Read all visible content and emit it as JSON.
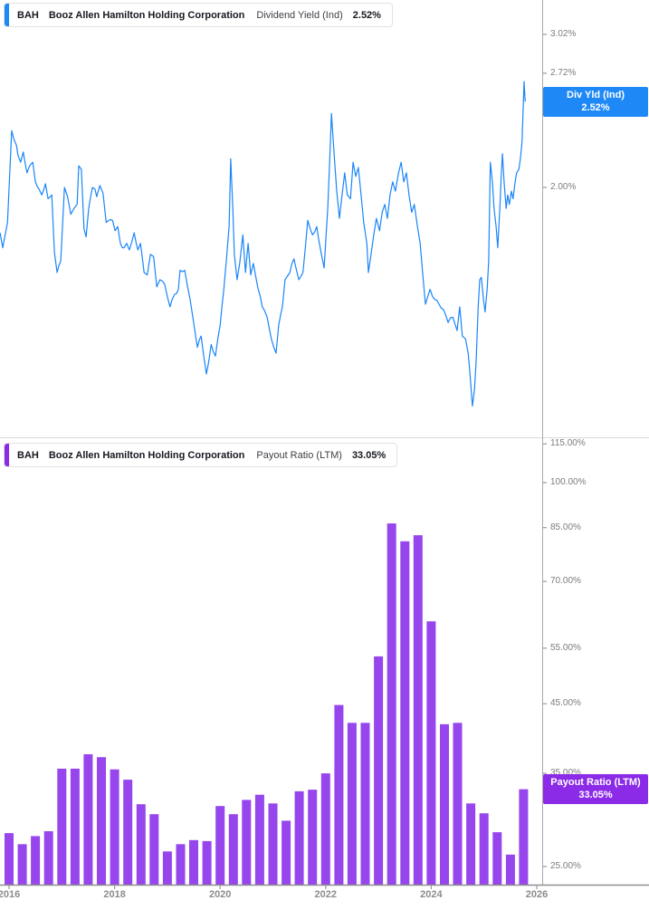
{
  "page": {
    "background": "#ffffff"
  },
  "colors": {
    "line_blue": "#1a85f8",
    "tag_blue": "#1e88f7",
    "bar_purple": "#9646ec",
    "tag_purple": "#8b2be8",
    "axis_line": "#a9a9a9",
    "bottom_axis_line": "#8f8f8f",
    "tick": "#999999",
    "y_label_text": "#7c7c7c",
    "x_label_text": "#8c8c8c",
    "divider": "#d9d9d9"
  },
  "charts": [
    {
      "id": "dividend-yield",
      "header": {
        "ticker": "BAH",
        "company": "Booz Allen Hamilton Holding Corporation",
        "metric": "Dividend Yield (Ind)",
        "value": "2.52%"
      },
      "accent": "#1e88f7",
      "tag": {
        "line1": "Div Yld (Ind)",
        "line2": "2.52%",
        "bg": "#1e88f7"
      },
      "y_ticks": [
        "3.02%",
        "2.72%",
        "2.00%"
      ]
    },
    {
      "id": "payout-ratio",
      "header": {
        "ticker": "BAH",
        "company": "Booz Allen Hamilton Holding Corporation",
        "metric": "Payout Ratio (LTM)",
        "value": "33.05%"
      },
      "accent": "#8b2be8",
      "tag": {
        "line1": "Payout Ratio (LTM)",
        "line2": "33.05%",
        "bg": "#8b2be8"
      },
      "y_ticks": [
        "115.00%",
        "100.00%",
        "85.00%",
        "70.00%",
        "55.00%",
        "45.00%",
        "35.00%",
        "25.00%"
      ]
    }
  ],
  "x_axis": {
    "labels": [
      "2016",
      "2018",
      "2020",
      "2022",
      "2024",
      "2026"
    ]
  },
  "chart_data": [
    {
      "type": "line",
      "title": "BAH Booz Allen Hamilton Holding Corporation Dividend Yield (Ind)",
      "series_name": "Div Yld (Ind)",
      "current_value": 2.52,
      "unit": "%",
      "color": "#1a85f8",
      "y_scale": "log",
      "x_range": [
        2015.83,
        2026.08
      ],
      "y_axis_ticks": [
        3.02,
        2.72,
        2.0
      ],
      "y_visible_range": [
        1.02,
        3.31
      ],
      "legend_position": "right-tag",
      "grid": false,
      "points": [
        [
          2015.83,
          1.77
        ],
        [
          2015.88,
          1.7
        ],
        [
          2015.97,
          1.82
        ],
        [
          2016.05,
          2.33
        ],
        [
          2016.14,
          2.24
        ],
        [
          2016.17,
          2.18
        ],
        [
          2016.22,
          2.14
        ],
        [
          2016.27,
          2.2
        ],
        [
          2016.34,
          2.08
        ],
        [
          2016.39,
          2.12
        ],
        [
          2016.45,
          2.14
        ],
        [
          2016.5,
          2.03
        ],
        [
          2016.57,
          1.99
        ],
        [
          2016.62,
          1.96
        ],
        [
          2016.69,
          2.02
        ],
        [
          2016.74,
          1.94
        ],
        [
          2016.81,
          1.96
        ],
        [
          2016.86,
          1.68
        ],
        [
          2016.91,
          1.59
        ],
        [
          2016.98,
          1.64
        ],
        [
          2017.05,
          2.0
        ],
        [
          2017.11,
          1.95
        ],
        [
          2017.17,
          1.86
        ],
        [
          2017.23,
          1.89
        ],
        [
          2017.29,
          1.91
        ],
        [
          2017.32,
          2.12
        ],
        [
          2017.37,
          2.1
        ],
        [
          2017.42,
          1.79
        ],
        [
          2017.46,
          1.75
        ],
        [
          2017.51,
          1.89
        ],
        [
          2017.58,
          2.0
        ],
        [
          2017.63,
          1.99
        ],
        [
          2017.66,
          1.95
        ],
        [
          2017.72,
          2.01
        ],
        [
          2017.78,
          1.97
        ],
        [
          2017.84,
          1.82
        ],
        [
          2017.89,
          1.83
        ],
        [
          2017.96,
          1.83
        ],
        [
          2018.01,
          1.78
        ],
        [
          2018.06,
          1.8
        ],
        [
          2018.11,
          1.72
        ],
        [
          2018.18,
          1.7
        ],
        [
          2018.23,
          1.72
        ],
        [
          2018.28,
          1.69
        ],
        [
          2018.37,
          1.77
        ],
        [
          2018.44,
          1.69
        ],
        [
          2018.49,
          1.72
        ],
        [
          2018.56,
          1.59
        ],
        [
          2018.62,
          1.58
        ],
        [
          2018.68,
          1.67
        ],
        [
          2018.74,
          1.66
        ],
        [
          2018.8,
          1.53
        ],
        [
          2018.86,
          1.56
        ],
        [
          2018.95,
          1.54
        ],
        [
          2019.0,
          1.49
        ],
        [
          2019.05,
          1.45
        ],
        [
          2019.14,
          1.5
        ],
        [
          2019.21,
          1.52
        ],
        [
          2019.24,
          1.6
        ],
        [
          2019.33,
          1.6
        ],
        [
          2019.43,
          1.48
        ],
        [
          2019.57,
          1.3
        ],
        [
          2019.64,
          1.34
        ],
        [
          2019.74,
          1.21
        ],
        [
          2019.83,
          1.31
        ],
        [
          2019.91,
          1.27
        ],
        [
          2020.0,
          1.38
        ],
        [
          2020.07,
          1.52
        ],
        [
          2020.12,
          1.65
        ],
        [
          2020.17,
          1.8
        ],
        [
          2020.2,
          2.16
        ],
        [
          2020.24,
          1.89
        ],
        [
          2020.27,
          1.67
        ],
        [
          2020.32,
          1.56
        ],
        [
          2020.37,
          1.63
        ],
        [
          2020.43,
          1.76
        ],
        [
          2020.48,
          1.59
        ],
        [
          2020.53,
          1.72
        ],
        [
          2020.58,
          1.58
        ],
        [
          2020.63,
          1.63
        ],
        [
          2020.72,
          1.52
        ],
        [
          2020.8,
          1.45
        ],
        [
          2020.89,
          1.41
        ],
        [
          2020.97,
          1.33
        ],
        [
          2021.06,
          1.28
        ],
        [
          2021.11,
          1.38
        ],
        [
          2021.18,
          1.45
        ],
        [
          2021.23,
          1.56
        ],
        [
          2021.32,
          1.59
        ],
        [
          2021.4,
          1.65
        ],
        [
          2021.49,
          1.56
        ],
        [
          2021.57,
          1.59
        ],
        [
          2021.66,
          1.83
        ],
        [
          2021.75,
          1.76
        ],
        [
          2021.83,
          1.8
        ],
        [
          2021.92,
          1.67
        ],
        [
          2021.97,
          1.61
        ],
        [
          2022.04,
          1.89
        ],
        [
          2022.11,
          2.44
        ],
        [
          2022.16,
          2.19
        ],
        [
          2022.21,
          1.98
        ],
        [
          2022.26,
          1.84
        ],
        [
          2022.31,
          1.96
        ],
        [
          2022.36,
          2.08
        ],
        [
          2022.41,
          1.96
        ],
        [
          2022.47,
          1.94
        ],
        [
          2022.52,
          2.14
        ],
        [
          2022.57,
          2.06
        ],
        [
          2022.62,
          2.11
        ],
        [
          2022.67,
          1.96
        ],
        [
          2022.72,
          1.82
        ],
        [
          2022.78,
          1.72
        ],
        [
          2022.81,
          1.59
        ],
        [
          2022.86,
          1.67
        ],
        [
          2022.91,
          1.76
        ],
        [
          2022.96,
          1.84
        ],
        [
          2023.02,
          1.78
        ],
        [
          2023.07,
          1.87
        ],
        [
          2023.12,
          1.91
        ],
        [
          2023.17,
          1.84
        ],
        [
          2023.22,
          1.96
        ],
        [
          2023.27,
          2.03
        ],
        [
          2023.32,
          1.98
        ],
        [
          2023.38,
          2.08
        ],
        [
          2023.43,
          2.14
        ],
        [
          2023.48,
          2.03
        ],
        [
          2023.53,
          2.08
        ],
        [
          2023.58,
          1.96
        ],
        [
          2023.63,
          1.87
        ],
        [
          2023.68,
          1.91
        ],
        [
          2023.74,
          1.8
        ],
        [
          2023.79,
          1.72
        ],
        [
          2023.84,
          1.58
        ],
        [
          2023.89,
          1.46
        ],
        [
          2023.98,
          1.52
        ],
        [
          2024.06,
          1.48
        ],
        [
          2024.15,
          1.46
        ],
        [
          2024.23,
          1.44
        ],
        [
          2024.32,
          1.39
        ],
        [
          2024.41,
          1.41
        ],
        [
          2024.49,
          1.36
        ],
        [
          2024.54,
          1.45
        ],
        [
          2024.59,
          1.34
        ],
        [
          2024.65,
          1.33
        ],
        [
          2024.7,
          1.28
        ],
        [
          2024.73,
          1.22
        ],
        [
          2024.78,
          1.11
        ],
        [
          2024.82,
          1.16
        ],
        [
          2024.85,
          1.25
        ],
        [
          2024.89,
          1.45
        ],
        [
          2024.92,
          1.56
        ],
        [
          2024.95,
          1.57
        ],
        [
          2024.99,
          1.48
        ],
        [
          2025.02,
          1.43
        ],
        [
          2025.06,
          1.52
        ],
        [
          2025.09,
          1.64
        ],
        [
          2025.12,
          2.14
        ],
        [
          2025.16,
          2.03
        ],
        [
          2025.19,
          1.89
        ],
        [
          2025.23,
          1.8
        ],
        [
          2025.26,
          1.7
        ],
        [
          2025.3,
          1.89
        ],
        [
          2025.33,
          2.08
        ],
        [
          2025.35,
          2.19
        ],
        [
          2025.38,
          2.03
        ],
        [
          2025.42,
          1.89
        ],
        [
          2025.45,
          1.96
        ],
        [
          2025.48,
          1.91
        ],
        [
          2025.52,
          1.98
        ],
        [
          2025.55,
          1.94
        ],
        [
          2025.59,
          2.03
        ],
        [
          2025.62,
          2.08
        ],
        [
          2025.66,
          2.1
        ],
        [
          2025.69,
          2.16
        ],
        [
          2025.72,
          2.26
        ],
        [
          2025.76,
          2.66
        ],
        [
          2025.78,
          2.52
        ]
      ]
    },
    {
      "type": "bar",
      "title": "BAH Booz Allen Hamilton Holding Corporation Payout Ratio (LTM)",
      "series_name": "Payout Ratio (LTM)",
      "current_value": 33.05,
      "unit": "%",
      "color": "#9646ec",
      "y_scale": "log",
      "x_range": [
        2015.83,
        2026.08
      ],
      "y_axis_ticks": [
        115,
        100,
        85,
        70,
        55,
        45,
        35,
        25
      ],
      "y_visible_range": [
        23.4,
        117.3
      ],
      "first_period_end": 2016.0,
      "period_step": 0.25,
      "grid": false,
      "categories": [
        "2015 Q4",
        "2016 Q1",
        "2016 Q2",
        "2016 Q3",
        "2016 Q4",
        "2017 Q1",
        "2017 Q2",
        "2017 Q3",
        "2017 Q4",
        "2018 Q1",
        "2018 Q2",
        "2018 Q3",
        "2018 Q4",
        "2019 Q1",
        "2019 Q2",
        "2019 Q3",
        "2019 Q4",
        "2020 Q1",
        "2020 Q2",
        "2020 Q3",
        "2020 Q4",
        "2021 Q1",
        "2021 Q2",
        "2021 Q3",
        "2021 Q4",
        "2022 Q1",
        "2022 Q2",
        "2022 Q3",
        "2022 Q4",
        "2023 Q1",
        "2023 Q2",
        "2023 Q3",
        "2023 Q4",
        "2024 Q1",
        "2024 Q2",
        "2024 Q3",
        "2024 Q4",
        "2025 Q1",
        "2025 Q2",
        "2025 Q3"
      ],
      "values": [
        28.2,
        27.1,
        27.9,
        28.4,
        35.6,
        35.6,
        37.5,
        37.1,
        35.5,
        34.2,
        31.3,
        30.2,
        26.4,
        27.1,
        27.5,
        27.4,
        31.1,
        30.2,
        31.8,
        32.4,
        31.4,
        29.5,
        32.8,
        33.0,
        35.0,
        44.8,
        42.0,
        42.0,
        53.4,
        86.3,
        80.9,
        82.7,
        60.6,
        41.8,
        42.0,
        31.4,
        30.3,
        28.3,
        26.1,
        33.05
      ]
    }
  ]
}
